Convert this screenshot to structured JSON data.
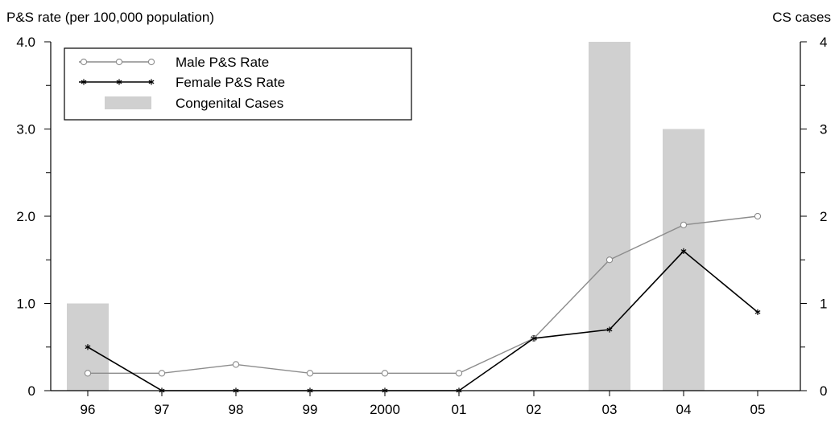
{
  "chart_data": {
    "type": "bar",
    "title": "",
    "left_axis_label": "P&S rate (per 100,000 population)",
    "right_axis_label": "CS cases",
    "categories": [
      "96",
      "97",
      "98",
      "99",
      "2000",
      "01",
      "02",
      "03",
      "04",
      "05"
    ],
    "y_left": {
      "range": [
        0,
        4.0
      ],
      "ticks": [
        0,
        1.0,
        2.0,
        3.0,
        4.0
      ],
      "tick_labels": [
        "0",
        "1.0",
        "2.0",
        "3.0",
        "4.0"
      ]
    },
    "y_right": {
      "range": [
        0,
        4
      ],
      "ticks": [
        0,
        1,
        2,
        3,
        4
      ],
      "tick_labels": [
        "0",
        "1",
        "2",
        "3",
        "4"
      ]
    },
    "series": [
      {
        "name": "Male P&S Rate",
        "type": "line",
        "marker": "circle",
        "color": "#8c8c8c",
        "axis": "left",
        "values": [
          0.2,
          0.2,
          0.3,
          0.2,
          0.2,
          0.2,
          0.6,
          1.5,
          1.9,
          2.0
        ]
      },
      {
        "name": "Female P&S Rate",
        "type": "line",
        "marker": "asterisk",
        "color": "#000000",
        "axis": "left",
        "values": [
          0.5,
          0.0,
          0.0,
          0.0,
          0.0,
          0.0,
          0.6,
          0.7,
          1.6,
          0.9
        ]
      },
      {
        "name": "Congenital Cases",
        "type": "bar",
        "color": "#d0d0d0",
        "axis": "right",
        "values": [
          1,
          0,
          0,
          0,
          0,
          0,
          0,
          4,
          3,
          0
        ]
      }
    ],
    "legend": {
      "position": "top-left",
      "entries": [
        "Male P&S Rate",
        "Female P&S Rate",
        "Congenital Cases"
      ]
    },
    "grid": false
  }
}
